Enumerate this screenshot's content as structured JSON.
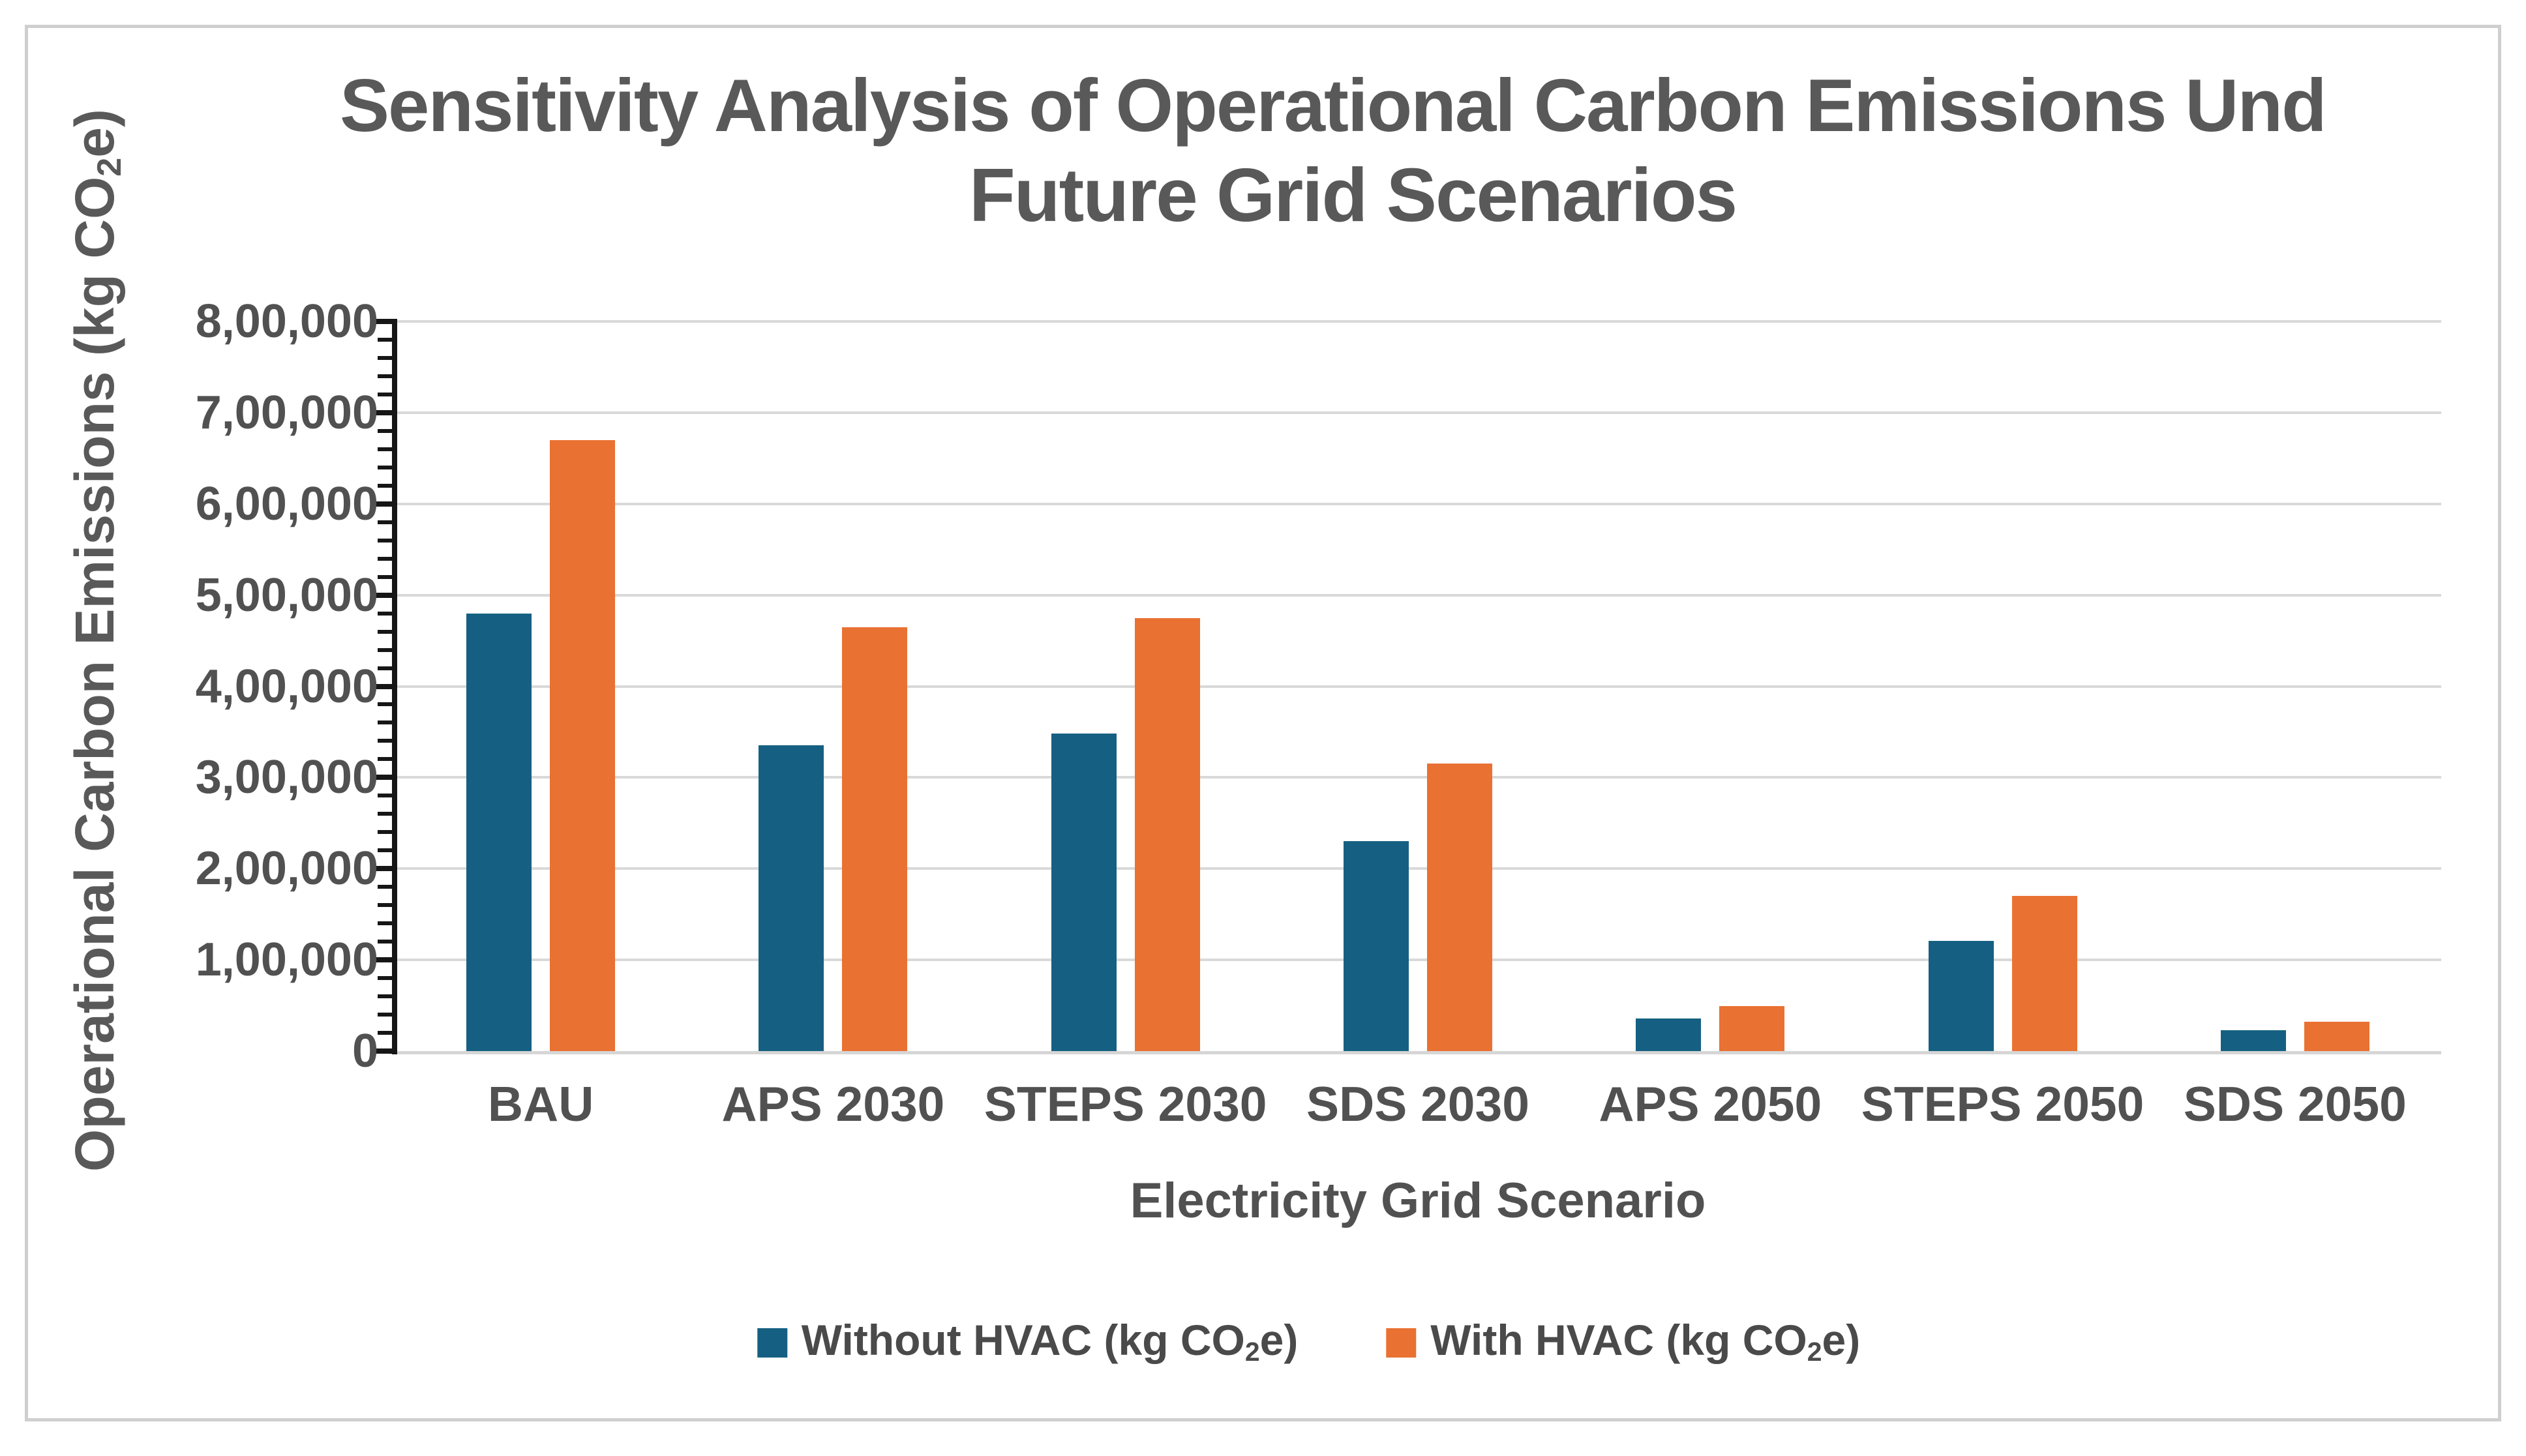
{
  "chart": {
    "title_line1": "Sensitivity Analysis of Operational Carbon Emissions Und",
    "title_line2": "Future Grid Scenarios",
    "y_axis_title": {
      "prefix": "Operational Carbon Emissions (kg CO",
      "sub": "2",
      "suffix": "e)"
    },
    "x_axis_title": "Electricity Grid Scenario",
    "legend": {
      "items": [
        {
          "prefix": "Without HVAC (kg CO",
          "sub": "2",
          "suffix": "e)",
          "color": "#156082"
        },
        {
          "prefix": "With HVAC (kg CO",
          "sub": "2",
          "suffix": "e)",
          "color": "#E97132"
        }
      ]
    },
    "colors": {
      "series_blue": "#156082",
      "series_orange": "#E97132",
      "gridline": "#d9d9d9",
      "axis_line": "#161616",
      "text_gray": "#595959",
      "frame_border": "#cfcfcf"
    }
  },
  "chart_data": {
    "type": "bar",
    "title": "Sensitivity Analysis of Operational Carbon Emissions Und Future Grid Scenarios",
    "xlabel": "Electricity Grid Scenario",
    "ylabel": "Operational Carbon Emissions (kg CO2e)",
    "categories": [
      "BAU",
      "APS 2030",
      "STEPS 2030",
      "SDS 2030",
      "APS 2050",
      "STEPS 2050",
      "SDS 2050"
    ],
    "series": [
      {
        "name": "Without HVAC (kg CO2e)",
        "color": "#156082",
        "values": [
          480000,
          335000,
          348000,
          230000,
          36000,
          121000,
          23000
        ]
      },
      {
        "name": "With HVAC (kg CO2e)",
        "color": "#E97132",
        "values": [
          670000,
          465000,
          475000,
          315000,
          49000,
          170000,
          32000
        ]
      }
    ],
    "ylim": [
      0,
      800000
    ],
    "y_major_unit": 100000,
    "y_minor_unit": 20000,
    "y_tick_labels": [
      "0",
      "1,00,000",
      "2,00,000",
      "3,00,000",
      "4,00,000",
      "5,00,000",
      "6,00,000",
      "7,00,000",
      "8,00,000"
    ],
    "grid": true,
    "legend_position": "bottom"
  }
}
